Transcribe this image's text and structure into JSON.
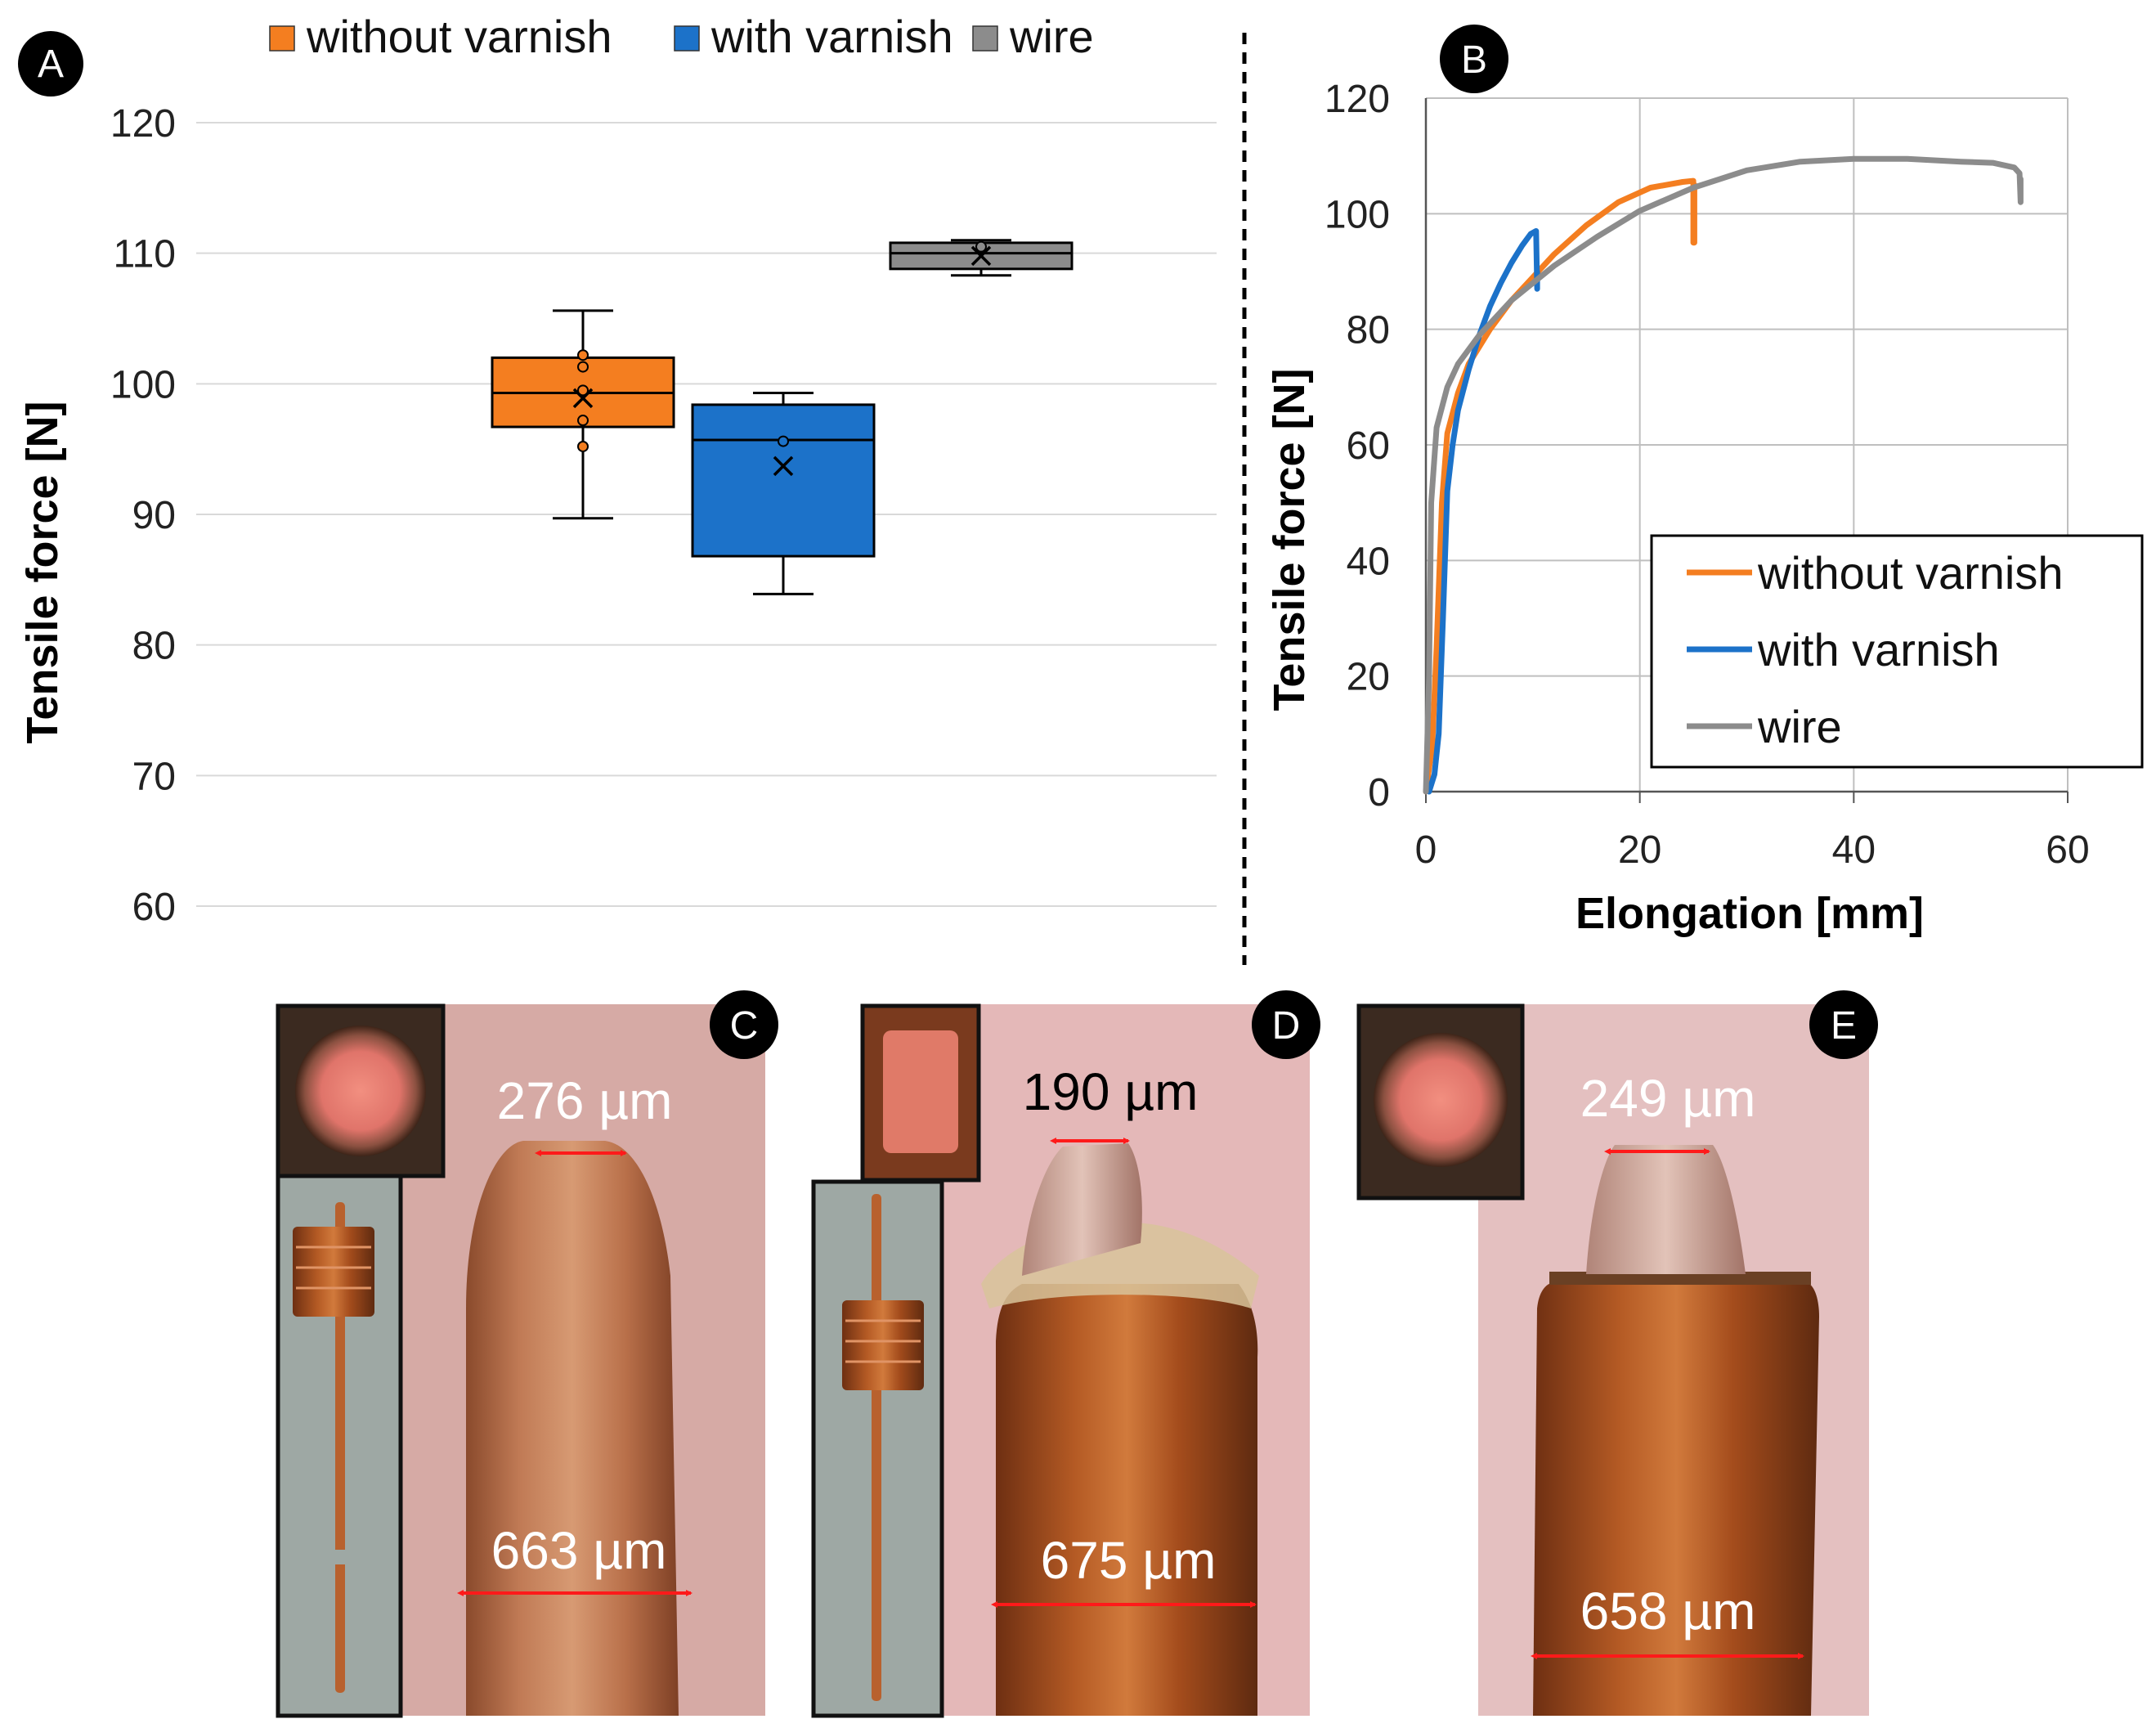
{
  "panel_labels": {
    "a": "A",
    "b": "B",
    "c": "C",
    "d": "D",
    "e": "E"
  },
  "colors": {
    "without_varnish": "#f47e20",
    "with_varnish": "#1c72c9",
    "wire": "#8c8c8c",
    "copper": "#b4683e",
    "measure": "#ff1a1a"
  },
  "chart_data": [
    {
      "panel": "A",
      "type": "boxplot",
      "ylabel": "Tensile force [N]",
      "xlabel": "",
      "ylim": [
        60,
        120
      ],
      "yticks": [
        60,
        70,
        80,
        90,
        100,
        110,
        120
      ],
      "grid": true,
      "legend": {
        "placement": "top",
        "entries": [
          "without varnish",
          "with varnish",
          "wire"
        ]
      },
      "series": [
        {
          "name": "without varnish",
          "color": "#f47e20",
          "min": 89.7,
          "q1": 96.7,
          "median": 99.3,
          "q3": 102.0,
          "max": 105.6,
          "mean": 98.9,
          "points": [
            102.2,
            101.3,
            99.5,
            97.2,
            95.2
          ]
        },
        {
          "name": "with varnish",
          "color": "#1c72c9",
          "min": 83.9,
          "q1": 86.8,
          "median": 95.7,
          "q3": 98.4,
          "max": 99.3,
          "mean": 93.7,
          "points": [
            95.6
          ]
        },
        {
          "name": "wire",
          "color": "#8c8c8c",
          "min": 108.3,
          "q1": 108.8,
          "median": 110.0,
          "q3": 110.8,
          "max": 111.0,
          "mean": 109.8,
          "points": [
            110.5
          ]
        }
      ]
    },
    {
      "panel": "B",
      "type": "line",
      "xlabel": "Elongation [mm]",
      "ylabel": "Tensile force [N]",
      "xlim": [
        0,
        60
      ],
      "ylim": [
        0,
        120
      ],
      "xticks": [
        0,
        20,
        40,
        60
      ],
      "yticks": [
        0,
        20,
        40,
        60,
        80,
        100,
        120
      ],
      "grid": true,
      "legend": {
        "placement": "bottom-right",
        "entries": [
          "without varnish",
          "with varnish",
          "wire"
        ]
      },
      "series": [
        {
          "name": "without varnish",
          "color": "#f47e20",
          "x": [
            0,
            0.6,
            1.0,
            1.5,
            2,
            3,
            4,
            6,
            8,
            10,
            12,
            15,
            18,
            21,
            24,
            25,
            25,
            25.1,
            25.1
          ],
          "y": [
            0,
            8,
            25,
            50,
            62,
            69,
            74,
            80,
            85,
            89,
            93,
            98,
            102,
            104.5,
            105.5,
            105.7,
            95,
            95,
            105
          ]
        },
        {
          "name": "with varnish",
          "color": "#1c72c9",
          "x": [
            0.3,
            0.8,
            1.2,
            1.6,
            2,
            2.5,
            3,
            4,
            5,
            6,
            7,
            8,
            9,
            9.8,
            10.3,
            10.4,
            10.4
          ],
          "y": [
            0,
            3,
            10,
            30,
            52,
            60,
            66,
            73,
            79,
            84,
            88,
            91.5,
            94.5,
            96.5,
            97,
            87,
            90
          ]
        },
        {
          "name": "wire",
          "color": "#8c8c8c",
          "x": [
            0,
            0.3,
            0.5,
            1,
            2,
            3,
            5,
            8,
            12,
            16,
            20,
            25,
            30,
            35,
            40,
            45,
            50,
            53,
            55,
            55.5,
            55.6,
            55.6
          ],
          "y": [
            0,
            20,
            50,
            63,
            70,
            74,
            79,
            85,
            91,
            96,
            100.5,
            104.5,
            107.5,
            109,
            109.5,
            109.5,
            109,
            108.8,
            108,
            107,
            102,
            106
          ]
        }
      ]
    }
  ],
  "micrographs": {
    "c": {
      "top": "276 µm",
      "bottom": "663 µm"
    },
    "d": {
      "top": "190 µm",
      "bottom": "675 µm"
    },
    "e": {
      "top": "249 µm",
      "bottom": "658 µm"
    }
  }
}
